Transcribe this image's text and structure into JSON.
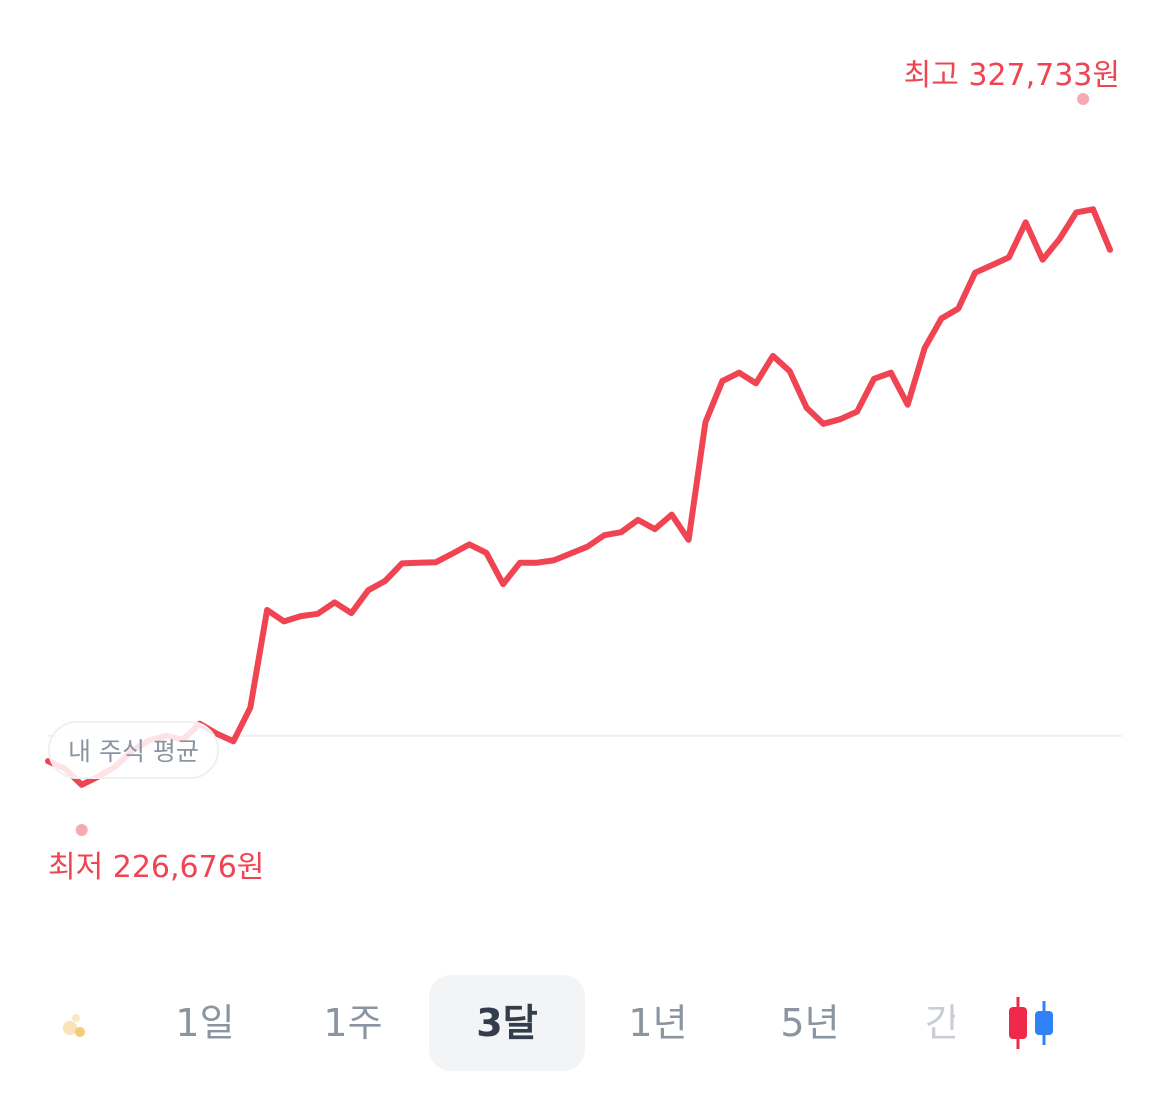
{
  "chart_data": {
    "type": "line",
    "high_label": "최고 327,733원",
    "low_label": "최저 226,676원",
    "avg_label": "내 주식 평균",
    "ylim": [
      221000,
      335000
    ],
    "average_value": 242500,
    "high_value": 327733,
    "low_value": 226676,
    "line_color": "#f04452",
    "values": [
      239200,
      238200,
      236100,
      237200,
      238500,
      240600,
      241900,
      242500,
      242000,
      244100,
      242800,
      241800,
      246200,
      259000,
      257500,
      258200,
      258500,
      260000,
      258600,
      261600,
      262800,
      265100,
      265200,
      265250,
      266400,
      267600,
      266500,
      262400,
      265200,
      265200,
      265500,
      266400,
      267300,
      268800,
      269200,
      270800,
      269600,
      271500,
      268200,
      283600,
      289000,
      290100,
      288700,
      292300,
      290300,
      285500,
      283400,
      284000,
      285000,
      289300,
      290100,
      285900,
      293300,
      297200,
      298500,
      303200,
      304200,
      305200,
      309800,
      304900,
      307600,
      311100,
      311500,
      306200
    ]
  },
  "tabs": [
    {
      "label": "1일"
    },
    {
      "label": "1주"
    },
    {
      "label": "3달"
    },
    {
      "label": "1년"
    },
    {
      "label": "5년"
    },
    {
      "label": "간"
    }
  ],
  "active_tab": "3달",
  "icons": {
    "left": "sparkle-icon",
    "right": "candlestick-icon"
  },
  "colors": {
    "rise": "#f04452",
    "fall": "#3182f6",
    "active_tab_bg": "#f2f4f6"
  }
}
